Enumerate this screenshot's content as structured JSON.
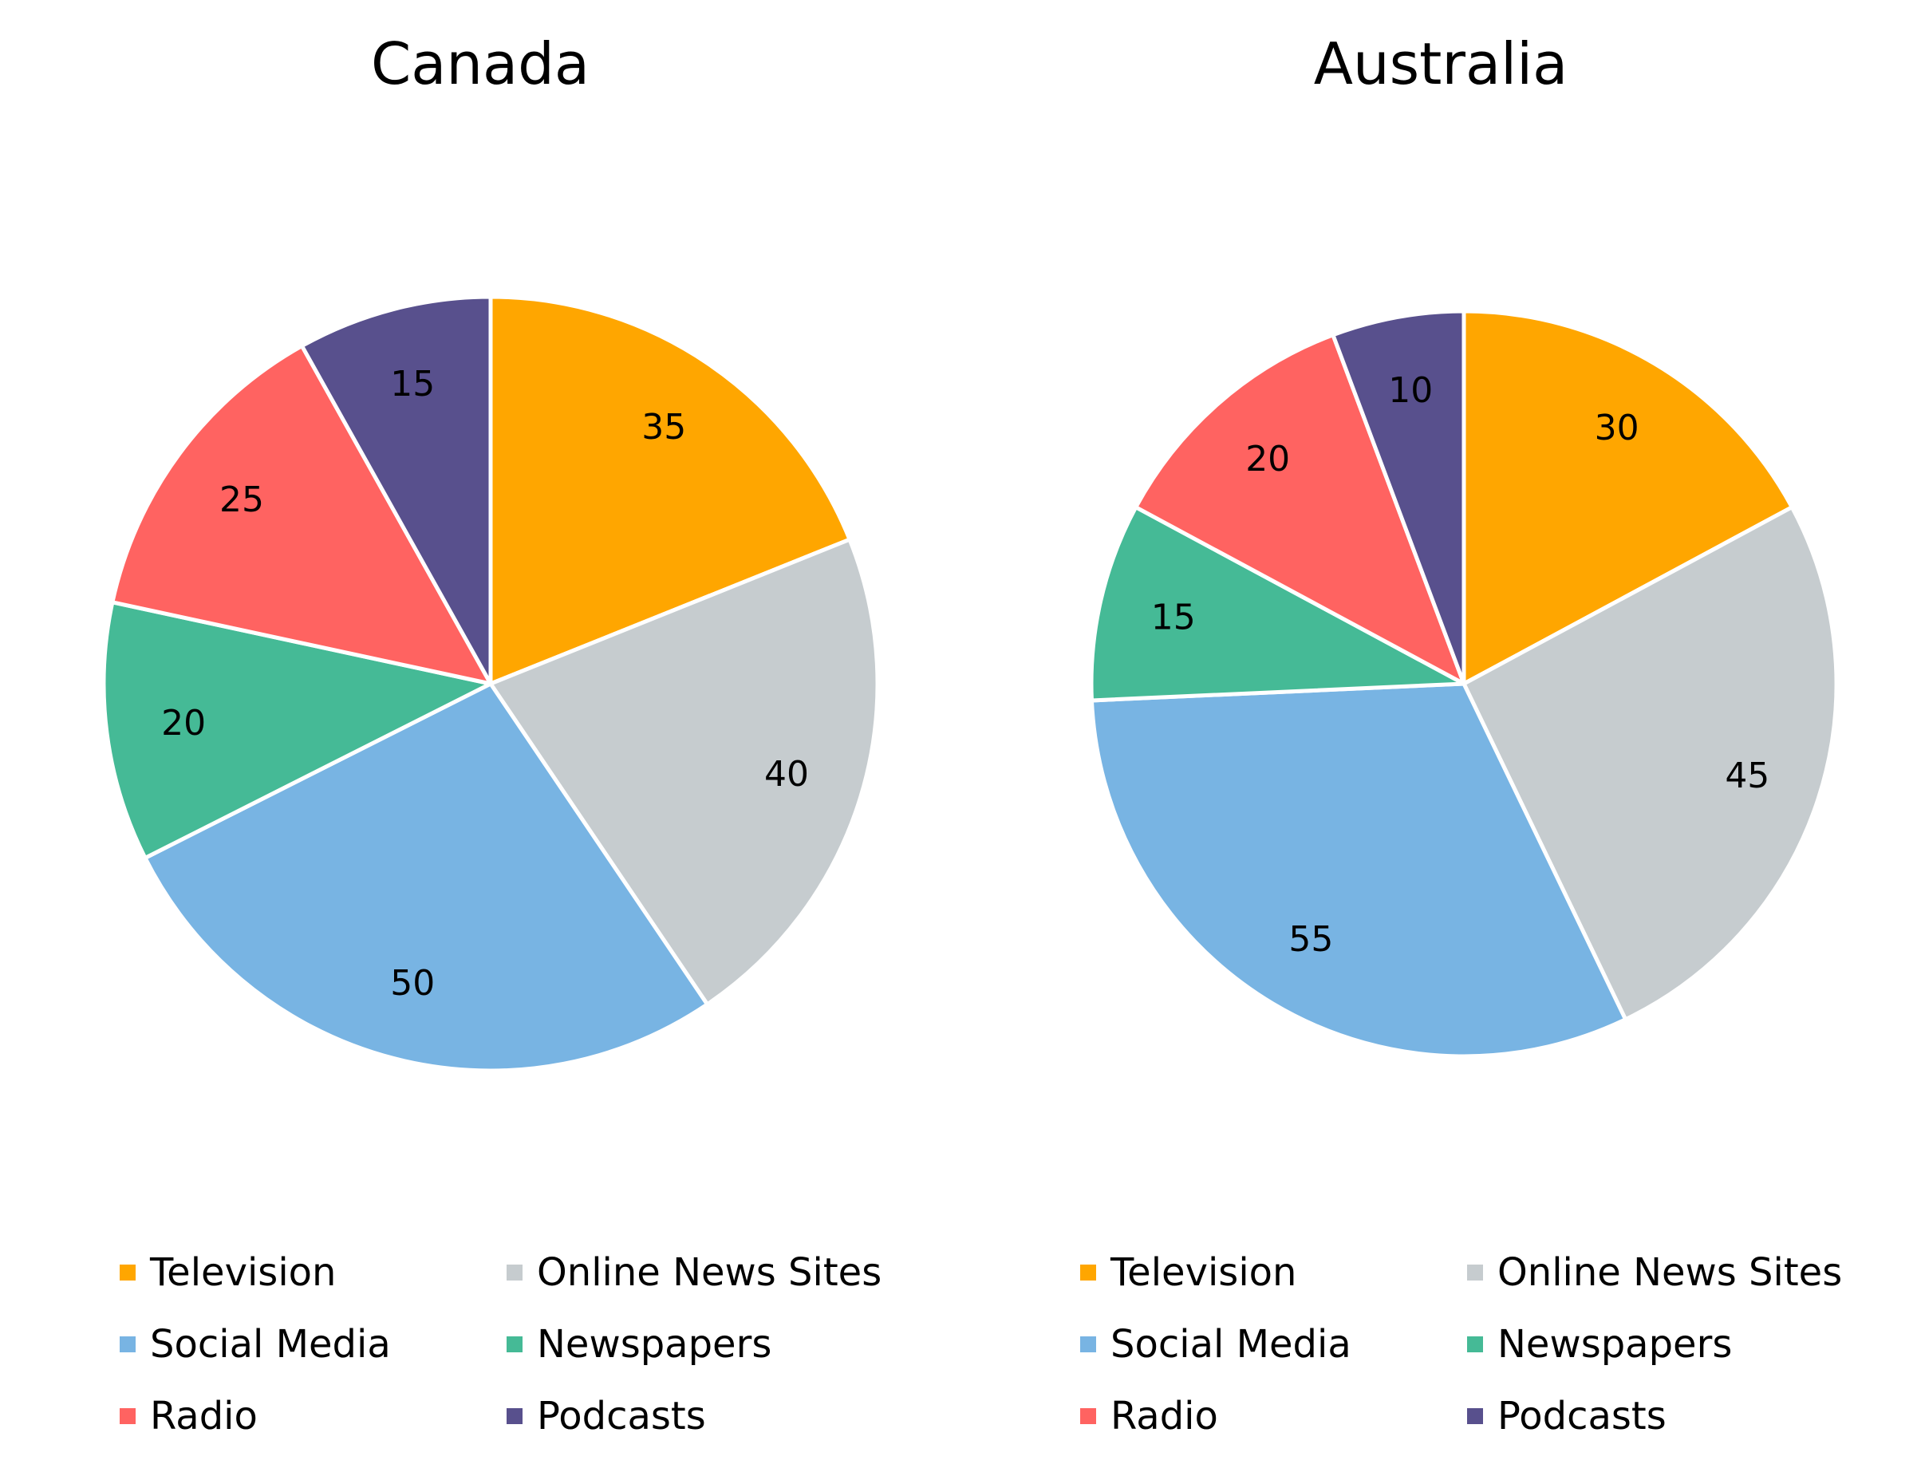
{
  "chart_data": [
    {
      "type": "pie",
      "title": "Canada",
      "categories": [
        "Television",
        "Online News Sites",
        "Social Media",
        "Newspapers",
        "Radio",
        "Podcasts"
      ],
      "values": [
        35,
        40,
        50,
        20,
        25,
        15
      ],
      "colors": [
        "#FFA600",
        "#C6CCCF",
        "#78B4E3",
        "#45BA96",
        "#FF6361",
        "#58508D"
      ],
      "legend": "bottom",
      "start_angle": "top",
      "direction": "clockwise"
    },
    {
      "type": "pie",
      "title": "Australia",
      "categories": [
        "Television",
        "Online News Sites",
        "Social Media",
        "Newspapers",
        "Radio",
        "Podcasts"
      ],
      "values": [
        30,
        45,
        55,
        15,
        20,
        10
      ],
      "colors": [
        "#FFA600",
        "#C6CCCF",
        "#78B4E3",
        "#45BA96",
        "#FF6361",
        "#58508D"
      ],
      "legend": "bottom",
      "start_angle": "top",
      "direction": "clockwise"
    }
  ]
}
